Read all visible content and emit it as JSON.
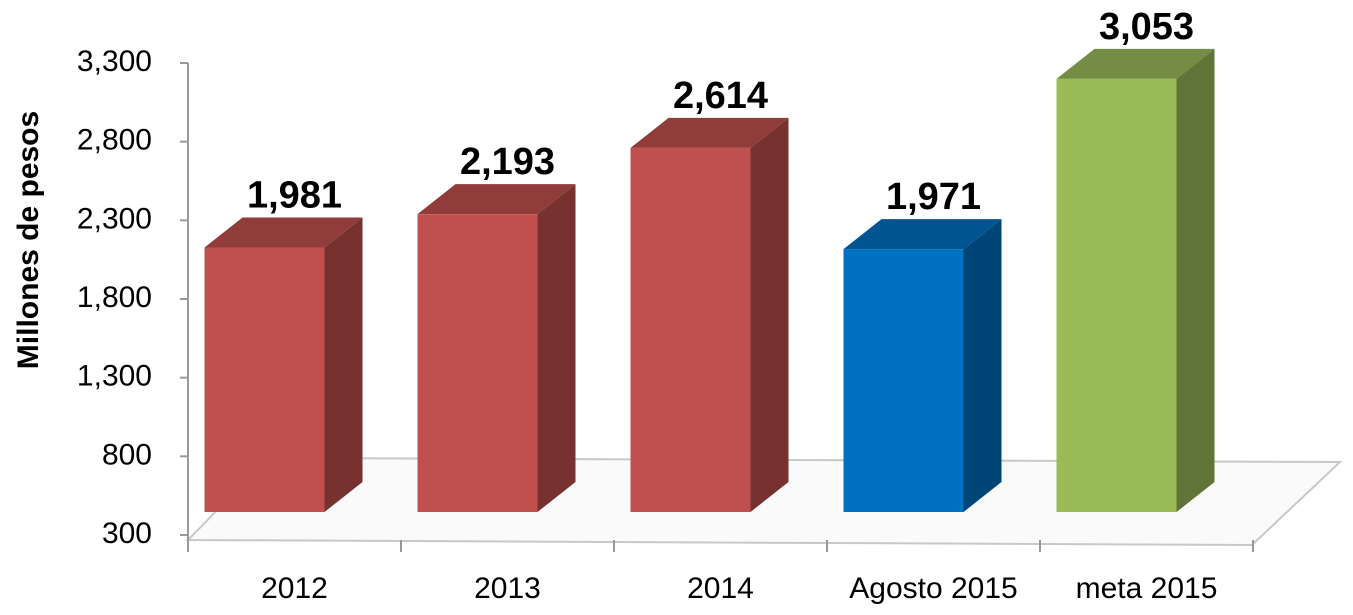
{
  "chart_data": {
    "type": "bar3d",
    "y_label": "Millones de pesos",
    "categories": [
      "2012",
      "2013",
      "2014",
      "Agosto 2015",
      "meta 2015"
    ],
    "values": [
      1981,
      2193,
      2614,
      1971,
      3053
    ],
    "value_labels": [
      "1,981",
      "2,193",
      "2,614",
      "1,971",
      "3,053"
    ],
    "colors": [
      "#c0504d",
      "#c0504d",
      "#c0504d",
      "#0070c0",
      "#9bbb59"
    ],
    "ylim": [
      300,
      3300
    ],
    "yticks": [
      300,
      800,
      {
        "value": 1300,
        "label": "1,300"
      },
      {
        "value": 1800,
        "label": "1,800"
      },
      {
        "value": 2300,
        "label": "2,300"
      },
      {
        "value": 2800,
        "label": "2,800"
      },
      {
        "value": 3300,
        "label": "3,300"
      }
    ]
  }
}
